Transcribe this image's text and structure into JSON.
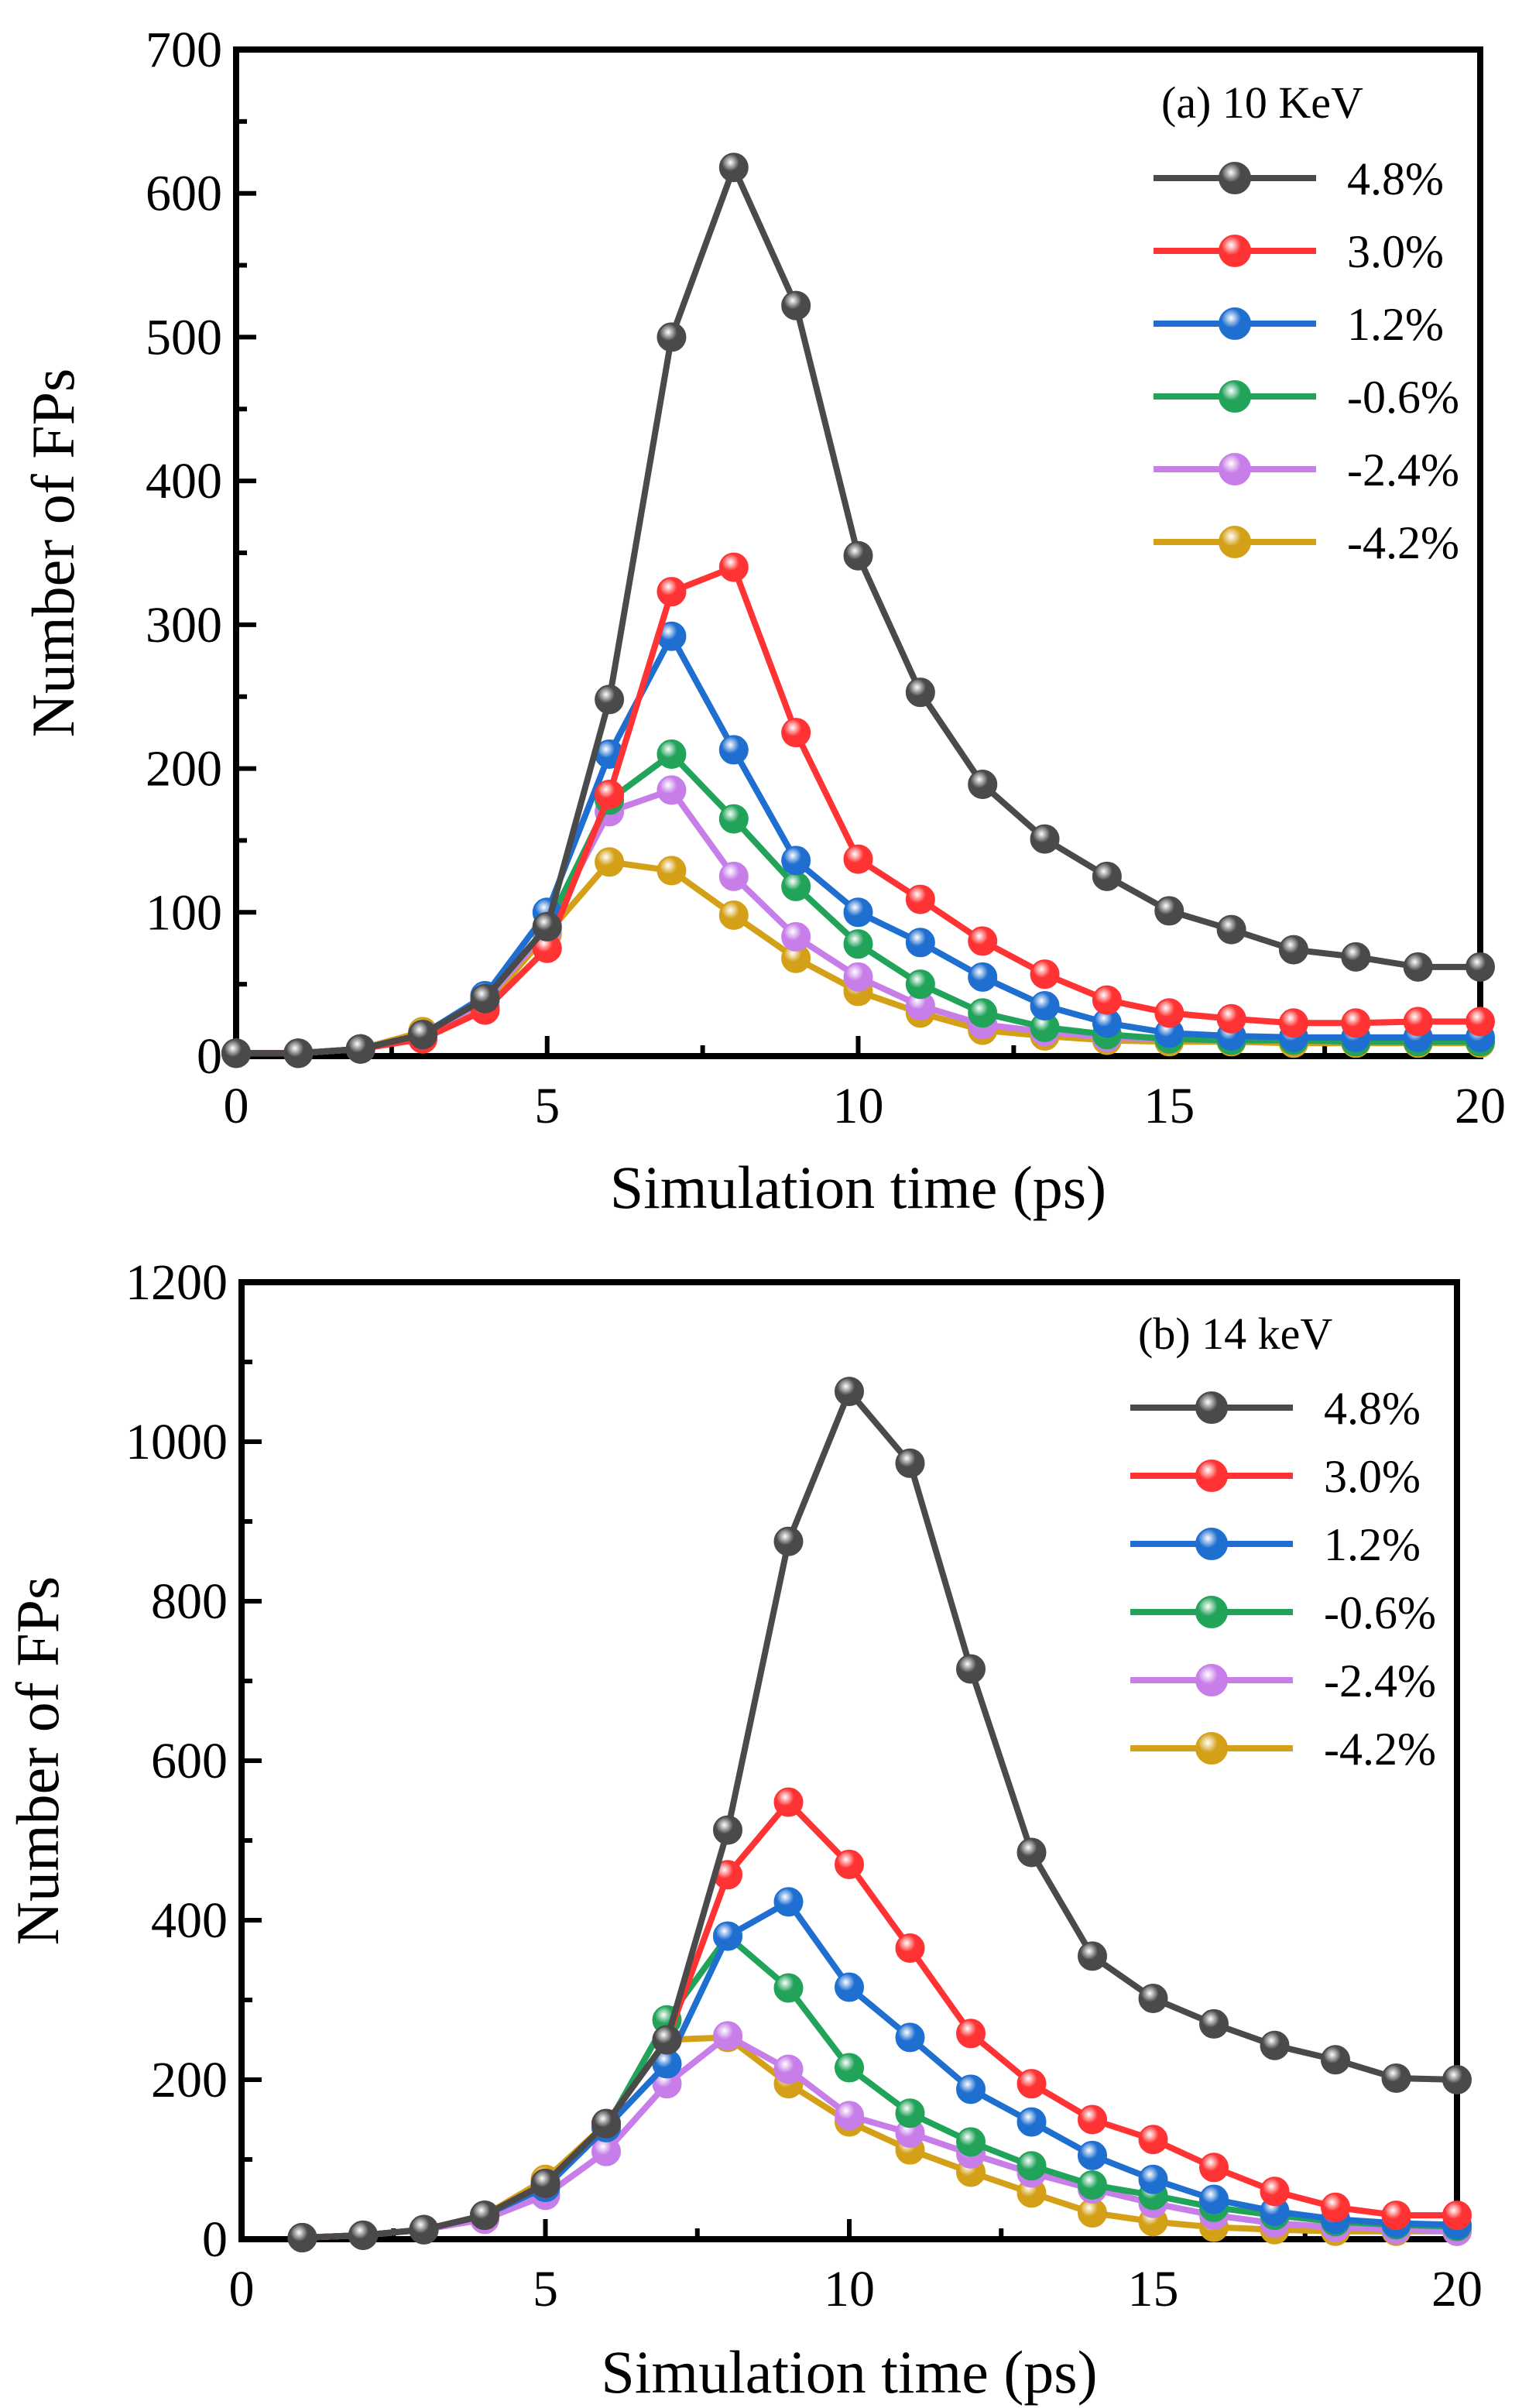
{
  "chart_data": [
    {
      "type": "line",
      "panel": "a",
      "title": "(a) 10 KeV",
      "xlabel": "Simulation time (ps)",
      "ylabel": "Number of FPs",
      "xlim": [
        0,
        20
      ],
      "ylim": [
        0,
        700
      ],
      "xticks": [
        0,
        5,
        10,
        15,
        20
      ],
      "yticks": [
        0,
        100,
        200,
        300,
        400,
        500,
        600,
        700
      ],
      "legend_position": "top-right",
      "grid": false,
      "x": [
        0,
        1,
        2,
        3,
        4,
        5,
        6,
        7,
        8,
        9,
        10,
        11,
        12,
        13,
        14,
        15,
        16,
        17,
        18,
        19,
        20
      ],
      "series": [
        {
          "name": "4.8%",
          "color": "#4a4a4a",
          "values": [
            2,
            2,
            5,
            15,
            40,
            90,
            248,
            500,
            618,
            522,
            348,
            253,
            189,
            151,
            125,
            101,
            88,
            74,
            69,
            62,
            62
          ]
        },
        {
          "name": "3.0%",
          "color": "#ff3333",
          "values": [
            2,
            2,
            5,
            12,
            32,
            75,
            182,
            323,
            340,
            225,
            137,
            109,
            80,
            57,
            39,
            30,
            26,
            23,
            23,
            24,
            24
          ]
        },
        {
          "name": "1.2%",
          "color": "#1f6fd1",
          "values": [
            2,
            2,
            5,
            15,
            42,
            100,
            210,
            292,
            213,
            136,
            100,
            79,
            55,
            35,
            23,
            16,
            14,
            13,
            13,
            13,
            13
          ]
        },
        {
          "name": "-0.6%",
          "color": "#22a35a",
          "values": [
            2,
            2,
            5,
            15,
            40,
            90,
            178,
            210,
            165,
            118,
            78,
            50,
            30,
            20,
            15,
            12,
            11,
            11,
            10,
            10,
            10
          ]
        },
        {
          "name": "-2.4%",
          "color": "#c77ee8",
          "values": [
            2,
            2,
            5,
            15,
            38,
            88,
            170,
            185,
            125,
            83,
            55,
            35,
            22,
            17,
            13,
            12,
            11,
            11,
            10,
            10,
            10
          ]
        },
        {
          "name": "-4.2%",
          "color": "#d4a017",
          "values": [
            2,
            2,
            5,
            17,
            35,
            85,
            135,
            129,
            98,
            68,
            45,
            30,
            18,
            14,
            11,
            10,
            10,
            9,
            9,
            9,
            9
          ]
        }
      ]
    },
    {
      "type": "line",
      "panel": "b",
      "title": "(b) 14 keV",
      "xlabel": "Simulation time (ps)",
      "ylabel": "Number of FPs",
      "xlim": [
        0,
        20
      ],
      "ylim": [
        0,
        1200
      ],
      "xticks": [
        0,
        5,
        10,
        15,
        20
      ],
      "yticks": [
        0,
        200,
        400,
        600,
        800,
        1000,
        1200
      ],
      "legend_position": "top-right",
      "grid": false,
      "x": [
        1,
        2,
        3,
        4,
        5,
        6,
        7,
        8,
        9,
        10,
        11,
        12,
        13,
        14,
        15,
        16,
        17,
        18,
        19,
        20
      ],
      "series": [
        {
          "name": "4.8%",
          "color": "#4a4a4a",
          "values": [
            2,
            5,
            12,
            30,
            70,
            145,
            250,
            513,
            875,
            1063,
            973,
            715,
            485,
            355,
            302,
            270,
            243,
            225,
            202,
            200
          ]
        },
        {
          "name": "3.0%",
          "color": "#ff3333",
          "values": [
            2,
            5,
            12,
            30,
            70,
            145,
            250,
            457,
            548,
            470,
            365,
            258,
            195,
            150,
            125,
            90,
            60,
            40,
            30,
            30
          ]
        },
        {
          "name": "1.2%",
          "color": "#1f6fd1",
          "values": [
            2,
            5,
            12,
            30,
            65,
            140,
            220,
            380,
            423,
            316,
            253,
            188,
            147,
            105,
            75,
            50,
            35,
            25,
            20,
            18
          ]
        },
        {
          "name": "-0.6%",
          "color": "#22a35a",
          "values": [
            2,
            5,
            12,
            30,
            65,
            140,
            275,
            380,
            315,
            215,
            158,
            122,
            92,
            68,
            55,
            40,
            30,
            22,
            18,
            16
          ]
        },
        {
          "name": "-2.4%",
          "color": "#c77ee8",
          "values": [
            2,
            5,
            12,
            25,
            55,
            110,
            195,
            255,
            213,
            155,
            133,
            107,
            83,
            63,
            45,
            30,
            20,
            15,
            12,
            10
          ]
        },
        {
          "name": "-4.2%",
          "color": "#d4a017",
          "values": [
            2,
            5,
            12,
            30,
            75,
            145,
            250,
            253,
            195,
            147,
            112,
            84,
            58,
            33,
            22,
            15,
            12,
            10,
            10,
            10
          ]
        }
      ]
    }
  ]
}
